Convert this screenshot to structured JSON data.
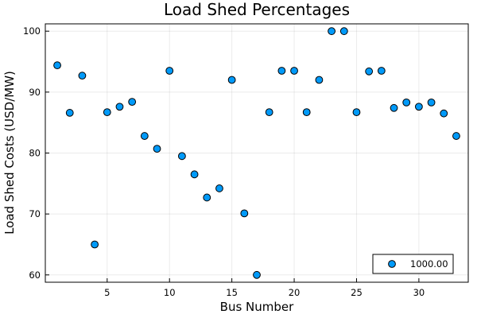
{
  "chart_data": {
    "type": "scatter",
    "title": "Load Shed Percentages",
    "xlabel": "Bus Number",
    "ylabel": "Load Shed Costs (USD/MW)",
    "xlim": [
      0.04,
      33.96
    ],
    "ylim": [
      58.8,
      101.2
    ],
    "xticks": [
      5,
      10,
      15,
      20,
      25,
      30
    ],
    "yticks": [
      60,
      70,
      80,
      90,
      100
    ],
    "grid": true,
    "legend_position": "bottom-right",
    "series": [
      {
        "name": "1000.00",
        "color": "#009af9",
        "x": [
          1,
          2,
          3,
          4,
          5,
          6,
          7,
          8,
          9,
          10,
          11,
          12,
          13,
          14,
          15,
          16,
          17,
          18,
          19,
          20,
          21,
          22,
          23,
          24,
          25,
          26,
          27,
          28,
          29,
          30,
          31,
          32,
          33
        ],
        "y": [
          94.4,
          86.6,
          92.7,
          65.0,
          86.7,
          87.6,
          88.4,
          82.8,
          80.7,
          93.5,
          79.5,
          76.5,
          72.7,
          74.2,
          92.0,
          70.1,
          60.0,
          86.7,
          93.5,
          93.5,
          86.7,
          92.0,
          100.0,
          100.0,
          86.7,
          93.4,
          93.5,
          87.4,
          88.3,
          87.6,
          88.3,
          86.5,
          82.8
        ]
      }
    ]
  }
}
